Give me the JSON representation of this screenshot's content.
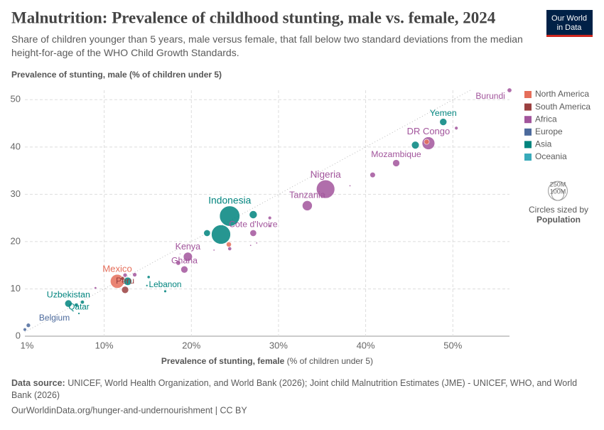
{
  "chart_data": {
    "type": "scatter",
    "title": "Malnutrition: Prevalence of childhood stunting, male vs. female, 2024",
    "subtitle": "Share of children younger than 5 years, male versus female, that fall below two standard deviations from the median height-for-age of the WHO Child Growth Standards.",
    "ylabel": "Prevalence of stunting, male (% of children under 5)",
    "xlabel": "Prevalence of stunting, female",
    "xlabel_unit": "(% of children under 5)",
    "logo": [
      "Our World",
      "in Data"
    ],
    "xlim": [
      0.9,
      56.5
    ],
    "ylim": [
      0,
      52
    ],
    "xticks": [
      {
        "value": 0.9,
        "label": "1%"
      },
      {
        "value": 10,
        "label": "10%"
      },
      {
        "value": 20,
        "label": "20%"
      },
      {
        "value": 30,
        "label": "30%"
      },
      {
        "value": 40,
        "label": "40%"
      },
      {
        "value": 50,
        "label": "50%"
      }
    ],
    "yticks": [
      0,
      10,
      20,
      30,
      40,
      50
    ],
    "grid": true,
    "legend_position": "right",
    "size_legend": {
      "title": "Circles sized by",
      "variable": "Population",
      "sizes": [
        {
          "value": 250,
          "label": "250M"
        },
        {
          "value": 100,
          "label": "100M"
        }
      ]
    },
    "series": [
      {
        "name": "North America",
        "color": "#e56e5a",
        "labels": [
          "Mexico",
          null,
          null
        ],
        "x": [
          11.5,
          24.3,
          47
        ],
        "values": [
          11.6,
          19.4,
          41.1
        ],
        "sizes": [
          130,
          18,
          18
        ]
      },
      {
        "name": "South America",
        "color": "#9a3f3f",
        "labels": [
          "Peru",
          null
        ],
        "x": [
          12.4,
          12.1
        ],
        "values": [
          9.8,
          12.2
        ],
        "sizes": [
          34,
          10
        ]
      },
      {
        "name": "Africa",
        "color": "#a2559c",
        "labels": [
          "Burundi",
          "DR Congo",
          null,
          "Mozambique",
          null,
          "Nigeria",
          "Tanzania",
          null,
          "Cote d'Ivoire",
          null,
          null,
          null,
          null,
          null,
          "Kenya",
          "Ghana",
          null,
          null,
          null,
          null,
          null,
          null
        ],
        "x": [
          56.5,
          47.2,
          50.4,
          43.5,
          40.8,
          35.4,
          33.3,
          38.2,
          27.1,
          29,
          29,
          24.4,
          27.5,
          26.8,
          19.6,
          19.2,
          18.5,
          22.6,
          9,
          13.5,
          12.4,
          18.7
        ],
        "values": [
          52,
          40.8,
          44,
          36.6,
          34.1,
          31.1,
          27.6,
          31.8,
          21.8,
          25,
          23.3,
          18.5,
          19.7,
          19.2,
          16.8,
          14.1,
          15.5,
          18.2,
          10.2,
          13,
          12.9,
          17.4
        ],
        "sizes": [
          14,
          110,
          8,
          34,
          20,
          230,
          68,
          2,
          30,
          8,
          4,
          10,
          2,
          2,
          55,
          34,
          15,
          2,
          4,
          12,
          12,
          1
        ]
      },
      {
        "name": "Europe",
        "color": "#4c6a9c",
        "labels": [
          "Belgium",
          null
        ],
        "x": [
          1.3,
          0.9
        ],
        "values": [
          2.3,
          1.4
        ],
        "sizes": [
          12,
          8
        ]
      },
      {
        "name": "Asia",
        "color": "#00847e",
        "labels": [
          "Yemen",
          null,
          "Indonesia",
          null,
          null,
          null,
          "Lebanon",
          null,
          null,
          "Uzbekistan",
          null,
          null,
          "Qatar",
          null
        ],
        "x": [
          48.9,
          45.7,
          24.4,
          27.1,
          23.4,
          21.8,
          17,
          15.1,
          14.9,
          5.9,
          6.8,
          7.5,
          7.1,
          12.7
        ],
        "values": [
          45.3,
          40.4,
          25.4,
          25.7,
          21.5,
          21.8,
          9.5,
          12.5,
          10.7,
          6.9,
          6.6,
          7.2,
          4.8,
          11.6
        ],
        "sizes": [
          35,
          40,
          280,
          42,
          250,
          30,
          5,
          6,
          3,
          36,
          10,
          10,
          3,
          45
        ]
      },
      {
        "name": "Oceania",
        "color": "#38aaba",
        "labels": [],
        "x": [],
        "values": [],
        "sizes": []
      }
    ],
    "source_label": "Data source:",
    "source": "UNICEF, World Health Organization, and World Bank (2026); Joint child Malnutrition Estimates (JME) - UNICEF, WHO, and World Bank (2026)",
    "footer": "OurWorldinData.org/hunger-and-undernourishment | CC BY"
  }
}
